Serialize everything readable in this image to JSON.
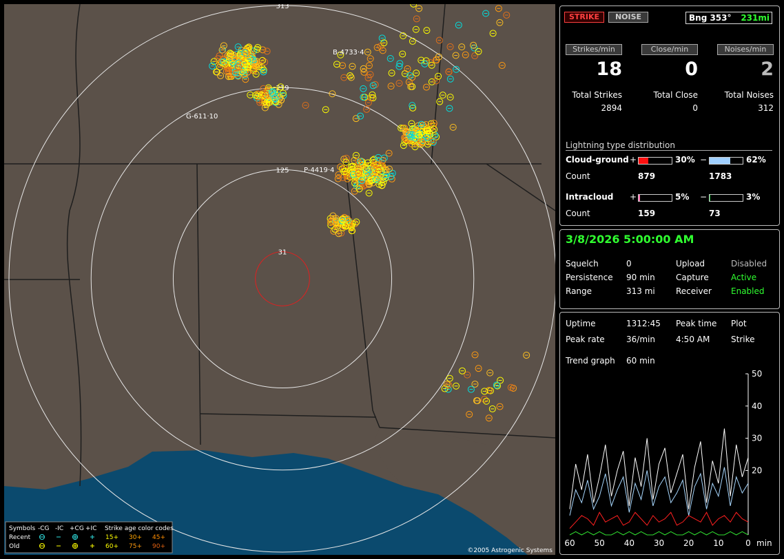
{
  "map": {
    "range_rings": [
      313,
      219,
      125,
      31
    ],
    "storm_labels": [
      "B-4733·4",
      "P-4419·4",
      "G-611·10"
    ],
    "copyright": "©2005 Astrogenic Systems",
    "legend": {
      "title": "Symbols",
      "types": [
        "-CG",
        "-IC",
        "+CG",
        "+IC"
      ],
      "age_title": "Strike age color codes",
      "rows": [
        {
          "label": "Recent",
          "ages": [
            "15+",
            "30+",
            "45+"
          ]
        },
        {
          "label": "Old",
          "ages": [
            "60+",
            "75+",
            "90+"
          ]
        }
      ]
    }
  },
  "controls": {
    "strike": "STRIKE",
    "noise": "NOISE",
    "bearing": "Bng 353°",
    "distance": "231mi"
  },
  "rates": [
    {
      "button": "Strikes/min",
      "value": 18,
      "total_label": "Total Strikes",
      "total": 2894
    },
    {
      "button": "Close/min",
      "value": 0,
      "total_label": "Total Close",
      "total": 0
    },
    {
      "button": "Noises/min",
      "value": 2,
      "total_label": "Total Noises",
      "total": 312
    }
  ],
  "distribution": {
    "title": "Lightning type distribution",
    "count_label": "Count",
    "rows": [
      {
        "label": "Cloud-ground",
        "pos_sign": "+",
        "pos_pct": {
          "value": 30,
          "label": "30%"
        },
        "neg_sign": "−",
        "neg_pct": {
          "value": 62,
          "label": "62%"
        },
        "pos_count": 879,
        "neg_count": 1783
      },
      {
        "label": "Intracloud",
        "pos_sign": "+",
        "pos_pct": {
          "value": 5,
          "label": "5%"
        },
        "neg_sign": "−",
        "neg_pct": {
          "value": 3,
          "label": "3%"
        },
        "pos_count": 159,
        "neg_count": 73
      }
    ]
  },
  "status": {
    "datetime": "3/8/2026 5:00:00 AM",
    "rows": [
      [
        "Squelch",
        "0",
        "Upload",
        "Disabled"
      ],
      [
        "Persistence",
        "90 min",
        "Capture",
        "Active"
      ],
      [
        "Range",
        "313 mi",
        "Receiver",
        "Enabled"
      ]
    ]
  },
  "stats": {
    "rows": [
      [
        "Uptime",
        "1312:45",
        "Peak time",
        "Plot"
      ],
      [
        "Peak rate",
        "36/min",
        "4:50 AM",
        "Strike"
      ]
    ],
    "trend_label": "Trend graph",
    "trend_value": "60 min"
  },
  "trend_chart": {
    "type": "line",
    "x_unit": "min",
    "xlim": [
      60,
      0
    ],
    "xticks": [
      60,
      50,
      40,
      30,
      20,
      10,
      0
    ],
    "ylim": [
      0,
      50
    ],
    "yticks": [
      20,
      30,
      40,
      50
    ],
    "x": [
      60,
      58,
      56,
      54,
      52,
      50,
      48,
      46,
      44,
      42,
      40,
      38,
      36,
      34,
      32,
      30,
      28,
      26,
      24,
      22,
      20,
      18,
      16,
      14,
      12,
      10,
      8,
      6,
      4,
      2,
      0
    ],
    "series": [
      {
        "color": "#ffffff",
        "values": [
          8,
          22,
          14,
          25,
          10,
          18,
          28,
          12,
          20,
          26,
          9,
          24,
          15,
          30,
          11,
          22,
          27,
          13,
          19,
          25,
          8,
          21,
          29,
          10,
          23,
          16,
          33,
          12,
          28,
          18,
          24
        ]
      },
      {
        "color": "#a8d8ff",
        "values": [
          6,
          14,
          10,
          17,
          8,
          12,
          19,
          9,
          14,
          18,
          7,
          16,
          11,
          20,
          9,
          15,
          18,
          10,
          13,
          17,
          6,
          15,
          19,
          8,
          16,
          12,
          21,
          9,
          18,
          13,
          16
        ]
      },
      {
        "color": "#ff2020",
        "values": [
          2,
          4,
          6,
          5,
          3,
          7,
          4,
          5,
          6,
          3,
          4,
          7,
          5,
          3,
          6,
          4,
          5,
          7,
          3,
          4,
          6,
          5,
          4,
          7,
          3,
          5,
          6,
          4,
          7,
          5,
          4
        ]
      },
      {
        "color": "#30e030",
        "values": [
          0,
          1,
          0,
          1,
          0,
          1,
          0,
          0,
          1,
          0,
          1,
          0,
          1,
          0,
          0,
          1,
          0,
          1,
          0,
          0,
          1,
          0,
          1,
          0,
          1,
          0,
          0,
          1,
          0,
          1,
          0
        ]
      }
    ]
  }
}
